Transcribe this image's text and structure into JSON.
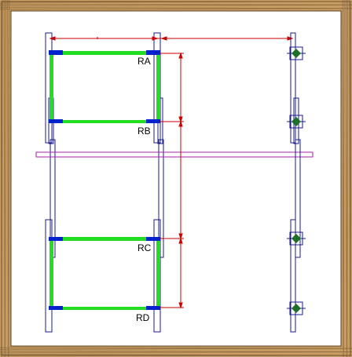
{
  "labels": {
    "ra": "RA",
    "rb": "RB",
    "rc": "RC",
    "rd": "RD"
  },
  "colors": {
    "frame_wood": "#b08a55",
    "frame_wood_dark": "#6e5230",
    "post_outline": "#1a1a8c",
    "beam": "#22dd22",
    "joint": "#0022cc",
    "dimension": "#cc0000",
    "crossbar": "#aa22aa",
    "node_fill": "#1f6e2a"
  },
  "icons": {
    "node": "diamond-node-icon",
    "arrow": "arrowhead-icon"
  }
}
